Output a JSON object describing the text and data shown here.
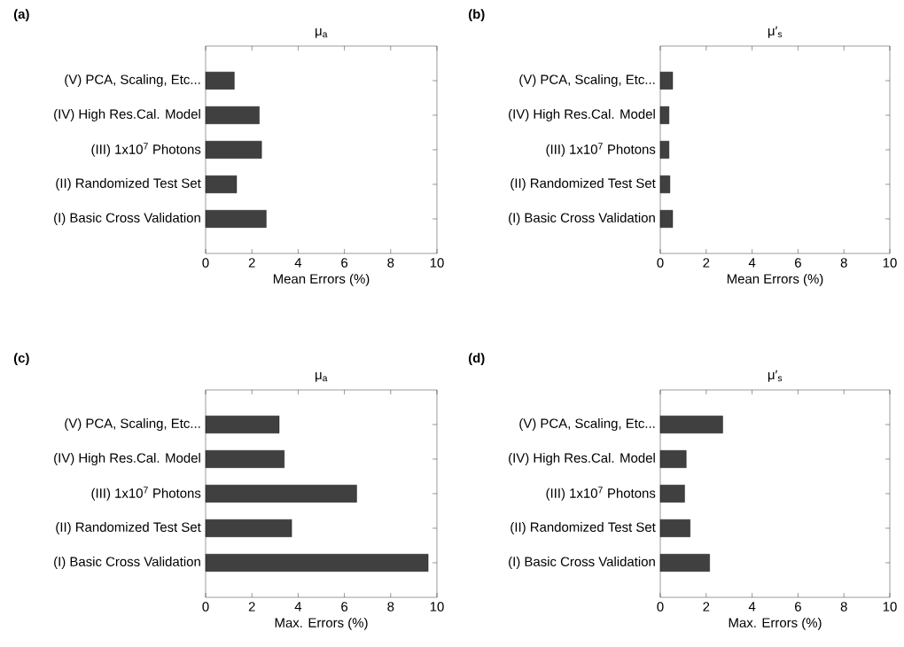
{
  "chart_data": [
    {
      "type": "bar",
      "orientation": "horizontal",
      "title": "μ$_{a}$",
      "xlabel": "Mean Errors (%)",
      "annotations": [
        "(a)"
      ],
      "categories": [
        "(V) PCA, Scaling, Etc...",
        "(IV) High Res.Cal. Model",
        "(III) 1x10$^{7}$ Photons",
        "(II) Randomized Test Set",
        "(I) Basic Cross Validation"
      ],
      "values": [
        1.24,
        2.32,
        2.42,
        1.34,
        2.62
      ],
      "color": "#404040",
      "xlim": [
        0,
        10
      ],
      "xticks": [
        0,
        2,
        4,
        6,
        8,
        10
      ]
    },
    {
      "type": "bar",
      "orientation": "horizontal",
      "title": "μ′$_{s}$",
      "xlabel": "Mean Errors (%)",
      "annotations": [
        "(b)"
      ],
      "categories": [
        "(V) PCA, Scaling, Etc...",
        "(IV) High Res.Cal. Model",
        "(III) 1x10$^{7}$ Photons",
        "(II) Randomized Test Set",
        "(I) Basic Cross Validation"
      ],
      "values": [
        0.54,
        0.38,
        0.38,
        0.42,
        0.54
      ],
      "color": "#404040",
      "xlim": [
        0,
        10
      ],
      "xticks": [
        0,
        2,
        4,
        6,
        8,
        10
      ]
    },
    {
      "type": "bar",
      "orientation": "horizontal",
      "title": "μ$_{a}$",
      "xlabel": "Max. Errors (%)",
      "annotations": [
        "(c)"
      ],
      "categories": [
        "(V) PCA, Scaling, Etc...",
        "(IV) High Res.Cal. Model",
        "(III) 1x10$^{7}$ Photons",
        "(II) Randomized Test Set",
        "(I) Basic Cross Validation"
      ],
      "values": [
        3.18,
        3.4,
        6.53,
        3.72,
        9.62
      ],
      "color": "#404040",
      "xlim": [
        0,
        10
      ],
      "xticks": [
        0,
        2,
        4,
        6,
        8,
        10
      ]
    },
    {
      "type": "bar",
      "orientation": "horizontal",
      "title": "μ′$_{s}$",
      "xlabel": "Max. Errors (%)",
      "annotations": [
        "(d)"
      ],
      "categories": [
        "(V) PCA, Scaling, Etc...",
        "(IV) High Res.Cal. Model",
        "(III) 1x10$^{7}$ Photons",
        "(II) Randomized Test Set",
        "(I) Basic Cross Validation"
      ],
      "values": [
        2.72,
        1.13,
        1.06,
        1.3,
        2.15
      ],
      "color": "#404040",
      "xlim": [
        0,
        10
      ],
      "xticks": [
        0,
        2,
        4,
        6,
        8,
        10
      ]
    }
  ]
}
